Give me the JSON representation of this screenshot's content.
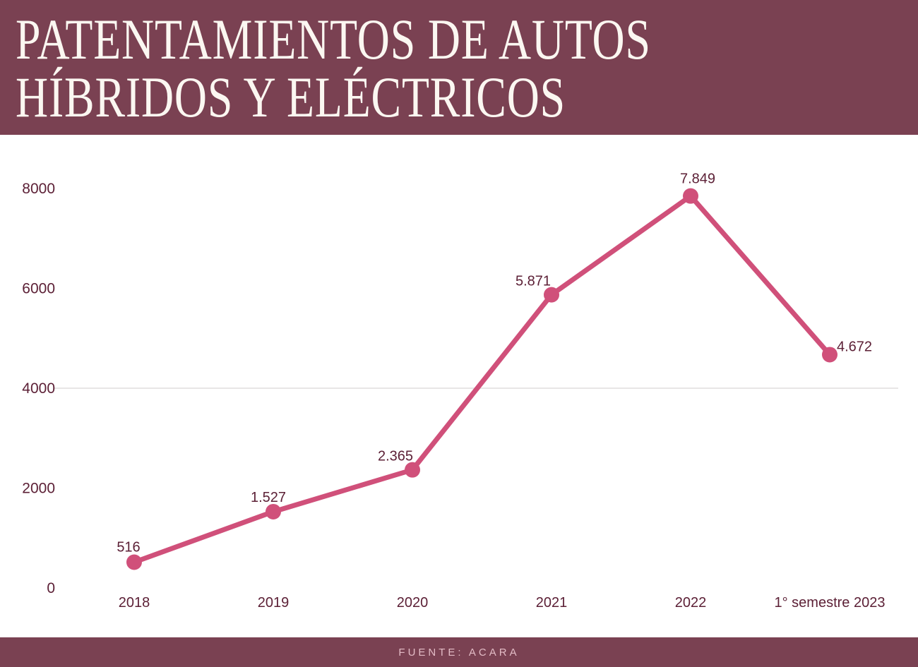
{
  "header": {
    "title_line1": "PATENTAMIENTOS DE AUTOS",
    "title_line2": "HÍBRIDOS Y ELÉCTRICOS"
  },
  "footer": {
    "source": "FUENTE: ACARA"
  },
  "colors": {
    "band": "#7a4152",
    "line": "#d0507a",
    "point": "#d0507a",
    "value_label": "#5c2036",
    "tick_label": "#5c2036",
    "gridline": "#e8e6e6",
    "background": "#ffffff",
    "title_text": "#fbf7f1",
    "footer_text": "#e3bcc6"
  },
  "chart_data": {
    "type": "line",
    "title": "Patentamientos de autos híbridos y eléctricos",
    "categories": [
      "2018",
      "2019",
      "2020",
      "2021",
      "2022",
      "1° semestre 2023"
    ],
    "values": [
      516,
      1527,
      2365,
      5871,
      7849,
      4672
    ],
    "value_labels": [
      "516",
      "1.527",
      "2.365",
      "5.871",
      "7.849",
      "4.672"
    ],
    "series_name": "Patentamientos",
    "xlabel": "",
    "ylabel": "",
    "ylim": [
      0,
      8400
    ],
    "yticks": [
      0,
      2000,
      4000,
      6000,
      8000
    ],
    "ytick_labels": [
      "0",
      "2000",
      "4000",
      "6000",
      "8000"
    ],
    "gridline_at": 4000,
    "grid": "single light horizontal gridline at y=4000",
    "legend": "none",
    "source": "FUENTE: ACARA"
  }
}
